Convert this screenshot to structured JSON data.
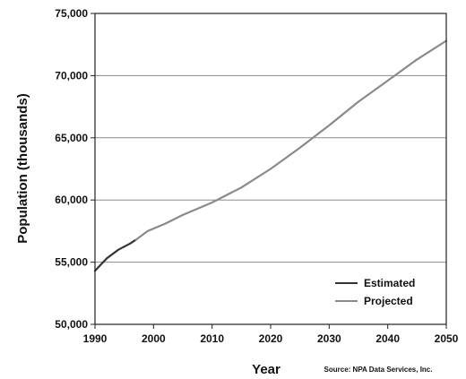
{
  "chart_data": {
    "type": "line",
    "title": "",
    "xlabel": "Year",
    "ylabel": "Population (thousands)",
    "xlim": [
      1990,
      2050
    ],
    "ylim": [
      50000,
      75000
    ],
    "x_ticks": [
      "1990",
      "2000",
      "2010",
      "2020",
      "2030",
      "2040",
      "2050"
    ],
    "y_ticks": [
      "50,000",
      "55,000",
      "60,000",
      "65,000",
      "70,000",
      "75,000"
    ],
    "grid": "horizontal",
    "legend_position": "bottom-right",
    "source": "Source: NPA Data Services, Inc.",
    "series": [
      {
        "name": "Estimated",
        "color": "#333333",
        "x": [
          1990,
          1992,
          1994,
          1996,
          1997
        ],
        "y": [
          54300,
          55300,
          56000,
          56500,
          56800
        ]
      },
      {
        "name": "Projected",
        "color": "#8a8a8a",
        "x": [
          1997,
          1999,
          2000,
          2002,
          2005,
          2010,
          2015,
          2020,
          2025,
          2030,
          2035,
          2040,
          2045,
          2050
        ],
        "y": [
          56800,
          57500,
          57700,
          58100,
          58800,
          59800,
          61000,
          62500,
          64200,
          66000,
          67900,
          69600,
          71300,
          72800
        ]
      }
    ]
  }
}
